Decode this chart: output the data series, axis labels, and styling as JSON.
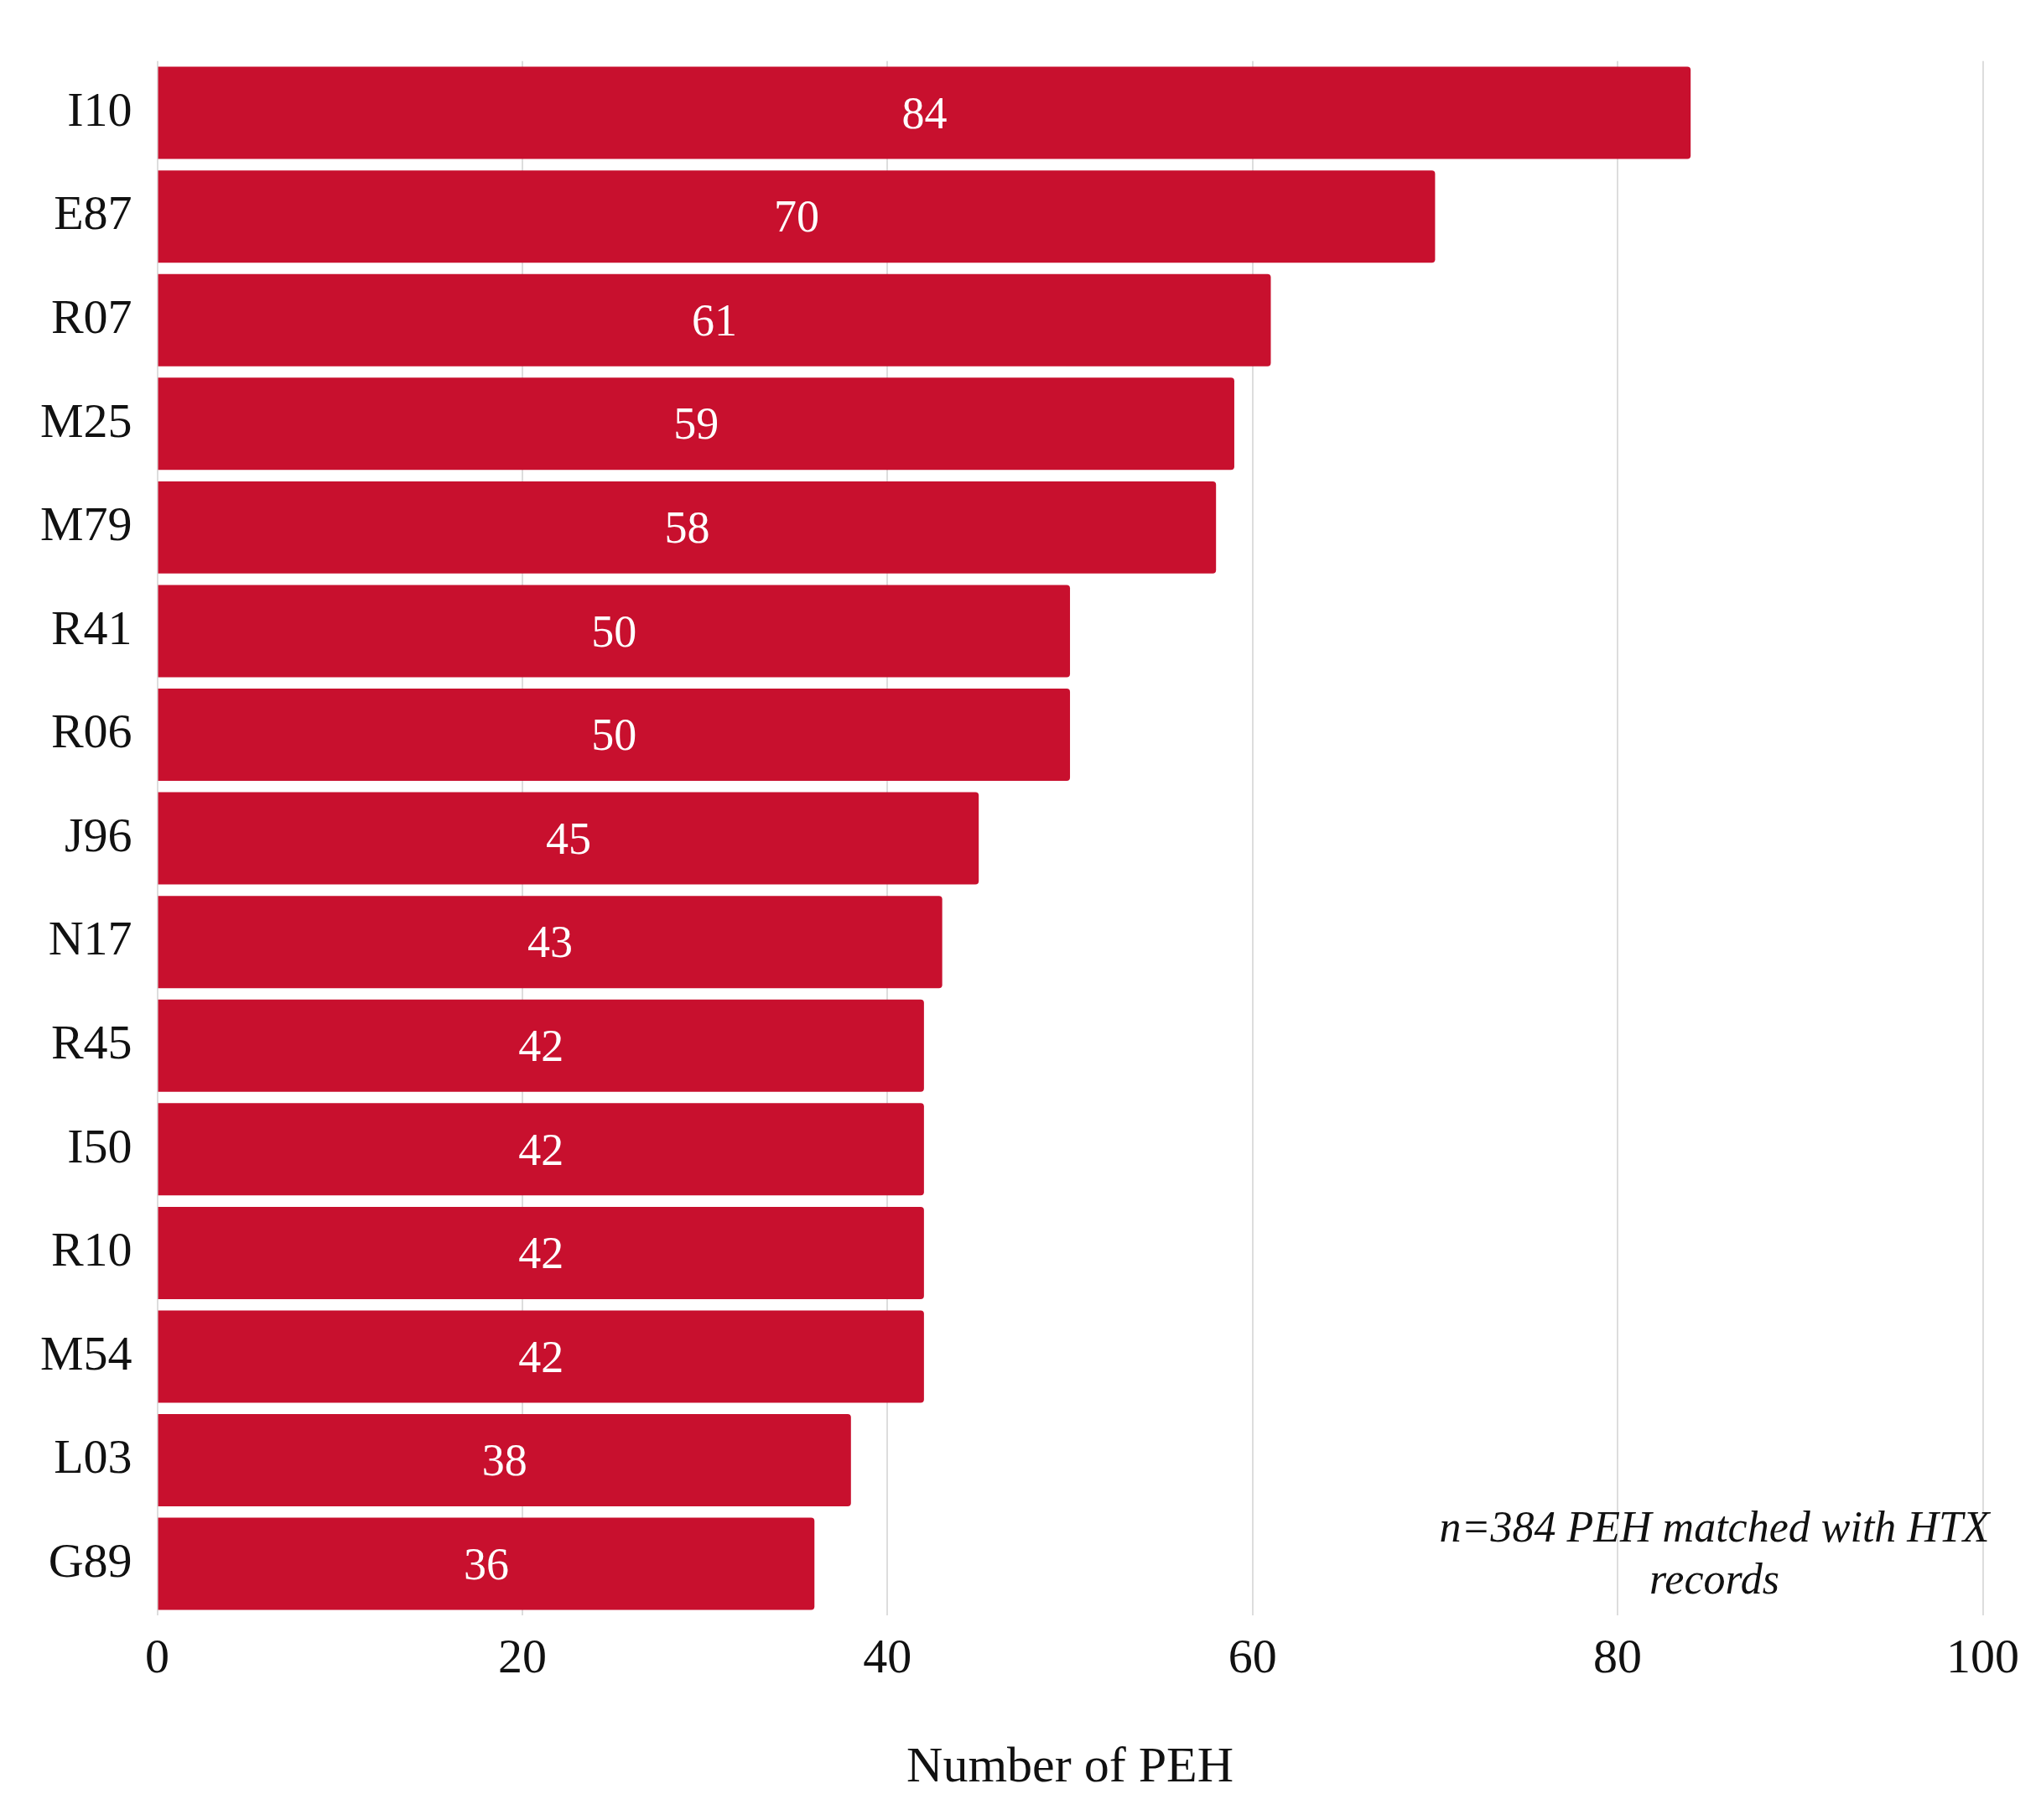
{
  "chart_data": {
    "type": "bar",
    "orientation": "horizontal",
    "xlabel": "Number of PEH",
    "categories": [
      "I10",
      "E87",
      "R07",
      "M25",
      "M79",
      "R41",
      "R06",
      "J96",
      "N17",
      "R45",
      "I50",
      "R10",
      "M54",
      "L03",
      "G89"
    ],
    "values": [
      84,
      70,
      61,
      59,
      58,
      50,
      50,
      45,
      43,
      42,
      42,
      42,
      42,
      38,
      36
    ],
    "color": "#c8102e",
    "xlim": [
      0,
      100
    ],
    "xticks": [
      0,
      20,
      40,
      60,
      80,
      100
    ],
    "grid": "x",
    "data_labels": true,
    "annotations": [
      "n=384 PEH matched with HTX records"
    ]
  }
}
